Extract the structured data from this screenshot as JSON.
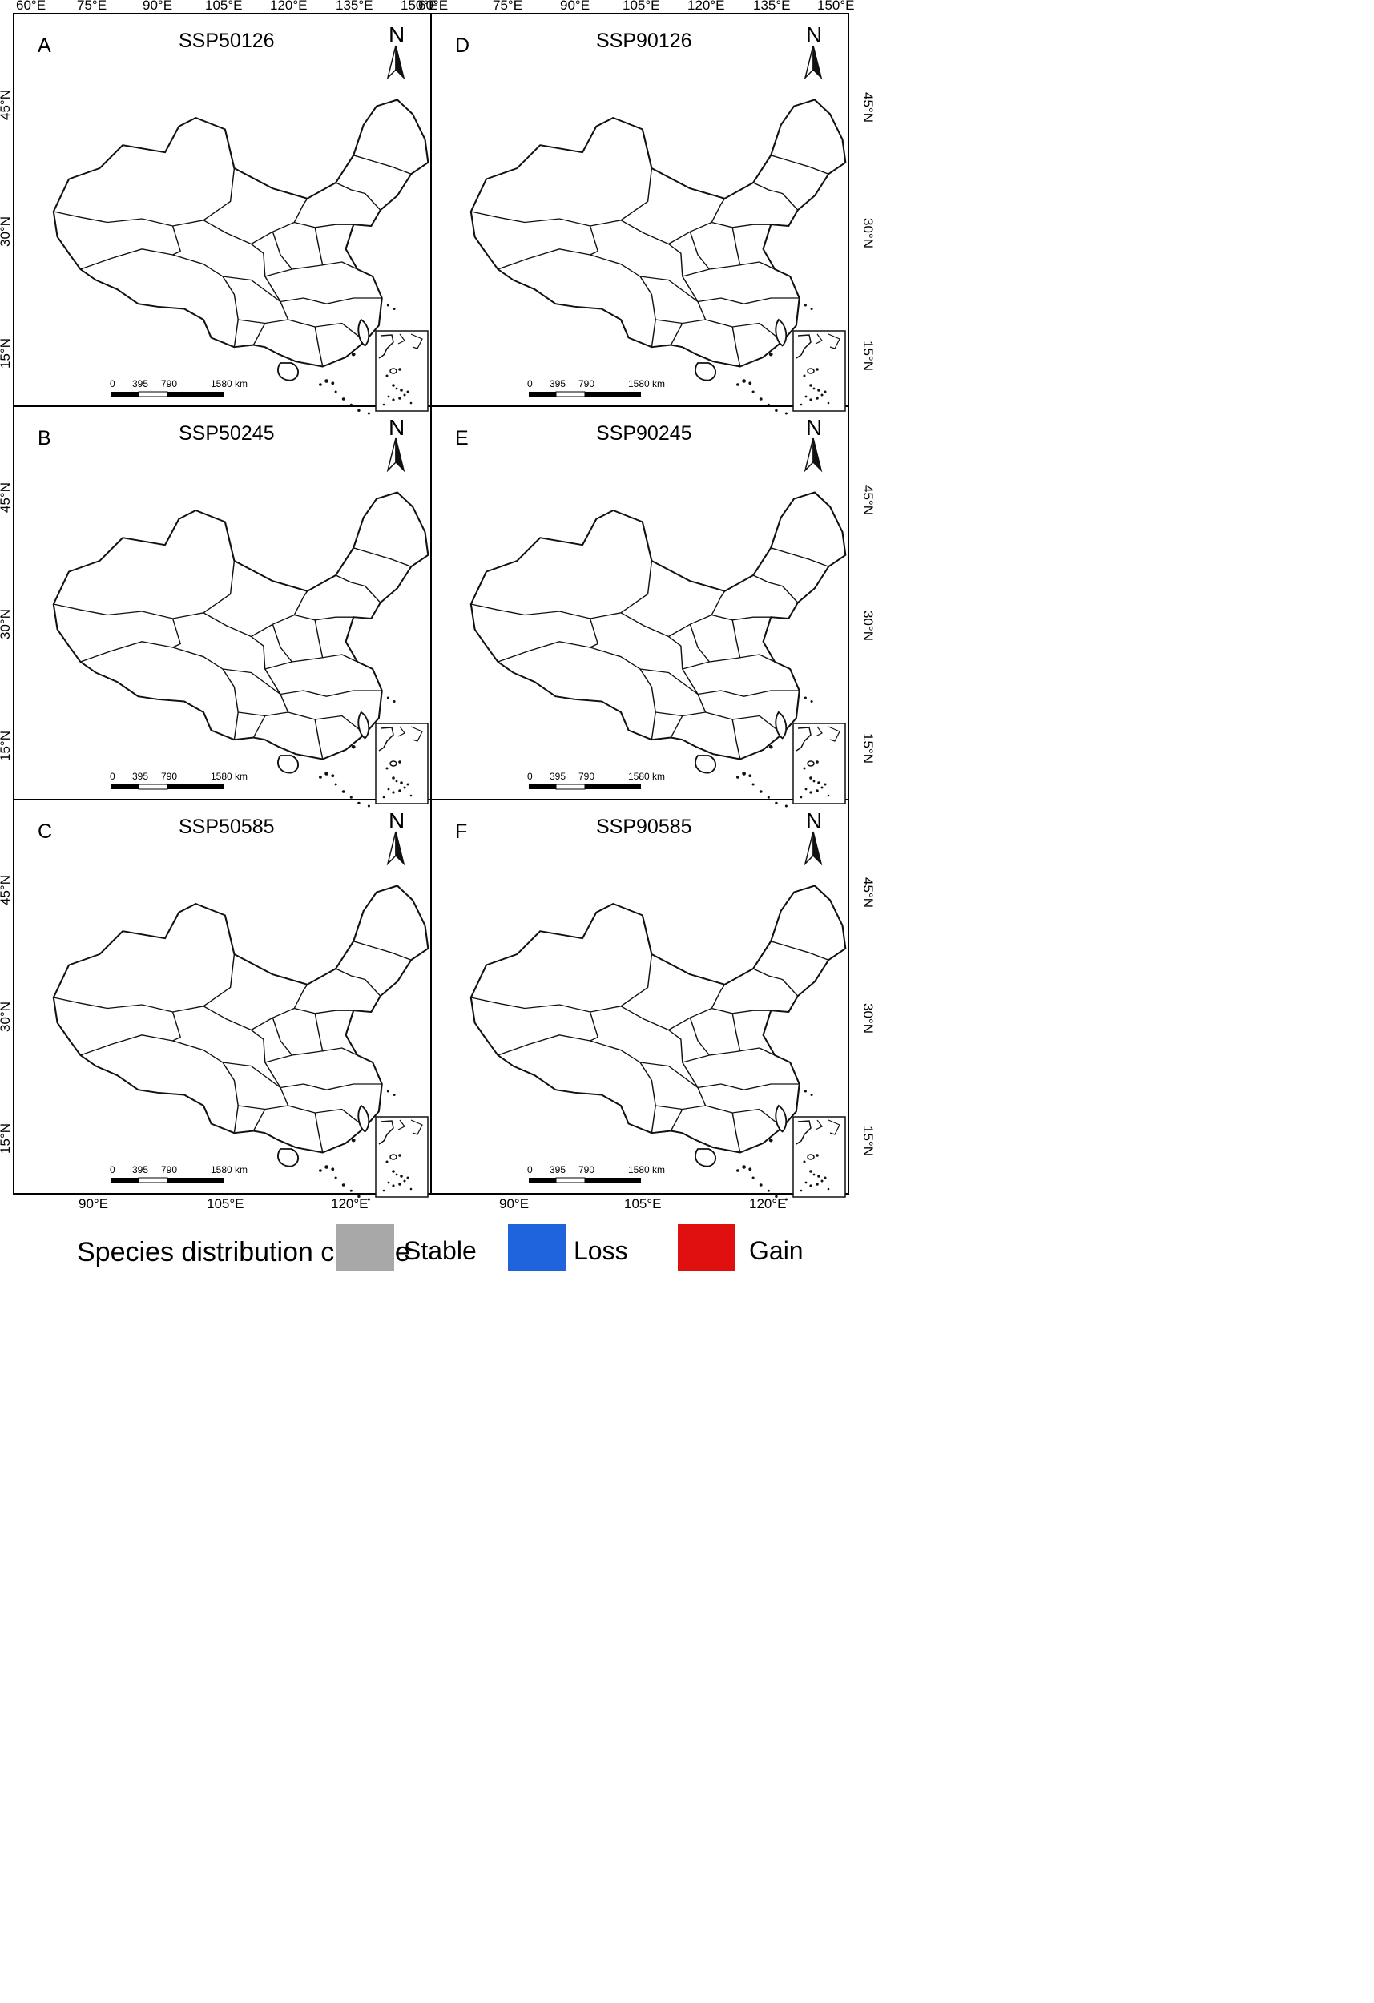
{
  "top_axis": {
    "left_labels": [
      "60°E",
      "75°E",
      "90°E",
      "105°E",
      "120°E",
      "135°E",
      "150°E"
    ],
    "right_labels": [
      "60°E",
      "75°E",
      "90°E",
      "105°E",
      "120°E",
      "135°E",
      "150°E"
    ]
  },
  "bottom_axis": {
    "left_labels": [
      "90°E",
      "105°E",
      "120°E"
    ],
    "right_labels": [
      "90°E",
      "105°E",
      "120°E"
    ]
  },
  "lat_labels": [
    "45°N",
    "30°N",
    "15°N"
  ],
  "panels": [
    {
      "letter": "A",
      "title": "SSP50126"
    },
    {
      "letter": "B",
      "title": "SSP50245"
    },
    {
      "letter": "C",
      "title": "SSP50585"
    },
    {
      "letter": "D",
      "title": "SSP90126"
    },
    {
      "letter": "E",
      "title": "SSP90245"
    },
    {
      "letter": "F",
      "title": "SSP90585"
    }
  ],
  "north_label": "N",
  "scale_bar": {
    "labels": [
      "0",
      "395",
      "790",
      "1580 km"
    ]
  },
  "legend": {
    "title": "Species distribution change",
    "items": [
      {
        "label": "Stable",
        "color": "#a8a8a8"
      },
      {
        "label": "Loss",
        "color": "#1f63dd"
      },
      {
        "label": "Gain",
        "color": "#e01010"
      }
    ]
  },
  "colors": {
    "stable": "#a8a8a8",
    "loss": "#1f63dd",
    "gain": "#e01010"
  }
}
